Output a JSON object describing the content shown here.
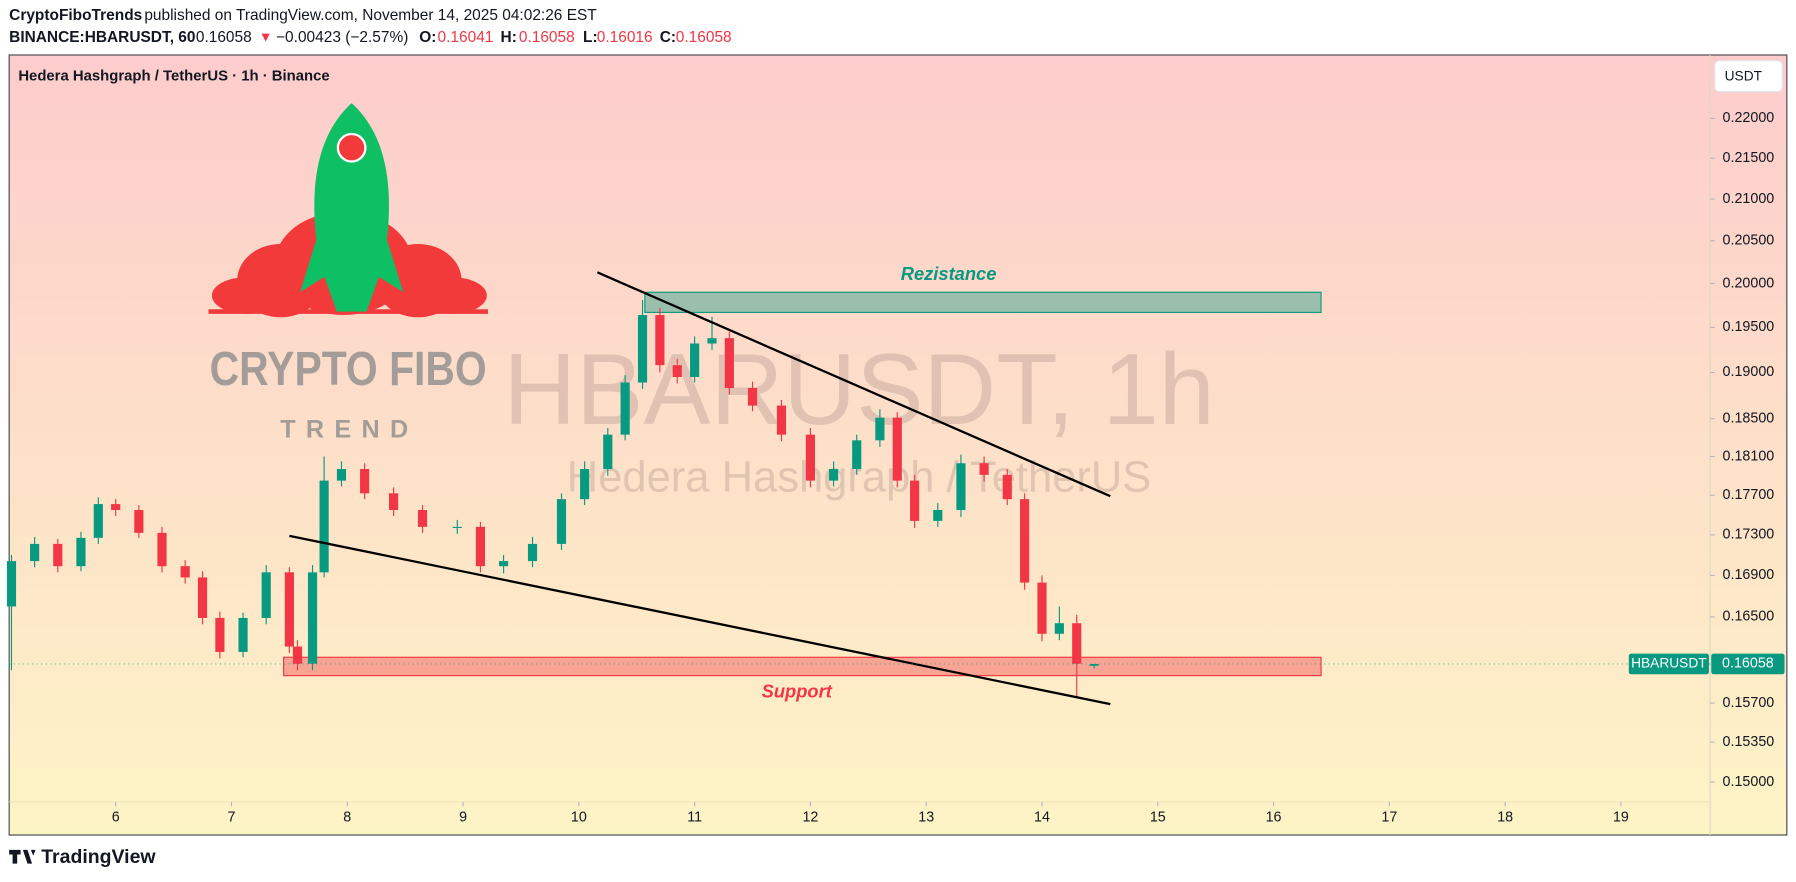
{
  "header": {
    "publisher": "CryptoFiboTrends",
    "published": "published on TradingView.com, November 14, 2025 04:02:26 EST",
    "symbol": "BINANCE:HBARUSDT, 60",
    "last": "0.16058",
    "arrow": "▼",
    "change": "−0.00423 (−2.57%)",
    "o_label": "O:",
    "o": "0.16041",
    "h_label": "H:",
    "h": "0.16058",
    "l_label": "L:",
    "l": "0.16016",
    "c_label": "C:",
    "c": "0.16058"
  },
  "chart_data": {
    "type": "candlestick",
    "title": "Hedera Hashgraph / TetherUS · 1h · Binance",
    "currency": "USDT",
    "watermark": "HBARUSDT, 1h",
    "watermark_sub": "Hedera Hashgraph / TetherUS",
    "symbol_label": "HBARUSDT",
    "last_price": 0.16058,
    "up_color": "#089981",
    "down_color": "#f23645",
    "log_scale": true,
    "x": [
      5.1,
      5.3,
      5.5,
      5.7,
      5.85,
      6.0,
      6.2,
      6.4,
      6.6,
      6.75,
      6.9,
      7.1,
      7.3,
      7.5,
      7.57,
      7.7,
      7.8,
      7.95,
      8.15,
      8.4,
      8.65,
      8.95,
      9.15,
      9.35,
      9.6,
      9.85,
      10.05,
      10.25,
      10.4,
      10.55,
      10.7,
      10.85,
      11.0,
      11.15,
      11.3,
      11.5,
      11.75,
      12.0,
      12.2,
      12.4,
      12.6,
      12.75,
      12.9,
      13.1,
      13.3,
      13.5,
      13.7,
      13.85,
      14.0,
      14.15,
      14.3,
      14.45
    ],
    "open": [
      0.166,
      0.1704,
      0.1721,
      0.1699,
      0.1727,
      0.1761,
      0.1755,
      0.1732,
      0.1699,
      0.1688,
      0.1649,
      0.1617,
      0.1649,
      0.1693,
      0.1622,
      0.1606,
      0.1693,
      0.1785,
      0.1797,
      0.1772,
      0.1755,
      0.1738,
      0.1738,
      0.1699,
      0.1704,
      0.1721,
      0.1766,
      0.1797,
      0.1833,
      0.1889,
      0.1964,
      0.1908,
      0.1895,
      0.1932,
      0.1938,
      0.1883,
      0.1864,
      0.1833,
      0.1785,
      0.1797,
      0.1827,
      0.1851,
      0.1785,
      0.1744,
      0.1755,
      0.1803,
      0.1791,
      0.1766,
      0.1683,
      0.1634,
      0.1644,
      0.16041
    ],
    "high": [
      0.171,
      0.1728,
      0.1726,
      0.1733,
      0.1768,
      0.1766,
      0.176,
      0.1738,
      0.1705,
      0.1694,
      0.1655,
      0.1654,
      0.17,
      0.1698,
      0.1628,
      0.17,
      0.181,
      0.1805,
      0.1803,
      0.1778,
      0.176,
      0.1745,
      0.1743,
      0.171,
      0.1728,
      0.1772,
      0.1805,
      0.184,
      0.1897,
      0.1981,
      0.1972,
      0.1915,
      0.194,
      0.1962,
      0.1945,
      0.189,
      0.187,
      0.184,
      0.1805,
      0.1833,
      0.186,
      0.1857,
      0.1791,
      0.1762,
      0.1812,
      0.181,
      0.1797,
      0.1772,
      0.169,
      0.166,
      0.1652,
      0.16058
    ],
    "low": [
      0.16,
      0.1698,
      0.1693,
      0.1694,
      0.1721,
      0.1749,
      0.1727,
      0.1693,
      0.1682,
      0.1643,
      0.1611,
      0.1612,
      0.1643,
      0.1616,
      0.16,
      0.16,
      0.1688,
      0.1779,
      0.1766,
      0.1749,
      0.1732,
      0.1731,
      0.1693,
      0.1692,
      0.1698,
      0.1715,
      0.176,
      0.179,
      0.1827,
      0.1882,
      0.19,
      0.1888,
      0.1889,
      0.1925,
      0.1876,
      0.1858,
      0.1826,
      0.1778,
      0.1779,
      0.1791,
      0.182,
      0.1778,
      0.1737,
      0.1738,
      0.1748,
      0.1784,
      0.176,
      0.1676,
      0.1627,
      0.1628,
      0.1575,
      0.16016
    ],
    "close": [
      0.1704,
      0.1721,
      0.1699,
      0.1727,
      0.1761,
      0.1755,
      0.1732,
      0.1699,
      0.1688,
      0.1649,
      0.1617,
      0.1649,
      0.1693,
      0.1622,
      0.1606,
      0.1693,
      0.1785,
      0.1797,
      0.1772,
      0.1755,
      0.1738,
      0.1738,
      0.1699,
      0.1704,
      0.1721,
      0.1766,
      0.1797,
      0.1833,
      0.1889,
      0.1964,
      0.1908,
      0.1895,
      0.1932,
      0.1938,
      0.1883,
      0.1864,
      0.1833,
      0.1785,
      0.1797,
      0.1827,
      0.1851,
      0.1785,
      0.1744,
      0.1755,
      0.1803,
      0.1791,
      0.1766,
      0.1683,
      0.1634,
      0.1644,
      0.1606,
      0.16058
    ],
    "xlim": [
      5.08,
      19.77
    ],
    "xticks": [
      6,
      7,
      8,
      9,
      10,
      11,
      12,
      13,
      14,
      15,
      16,
      17,
      18,
      19
    ],
    "ylim": [
      0.1483,
      0.2282
    ],
    "yticks": [
      {
        "value": 0.22,
        "label": "0.22000"
      },
      {
        "value": 0.215,
        "label": "0.21500"
      },
      {
        "value": 0.21,
        "label": "0.21000"
      },
      {
        "value": 0.205,
        "label": "0.20500"
      },
      {
        "value": 0.2,
        "label": "0.20000"
      },
      {
        "value": 0.195,
        "label": "0.19500"
      },
      {
        "value": 0.19,
        "label": "0.19000"
      },
      {
        "value": 0.185,
        "label": "0.18500"
      },
      {
        "value": 0.181,
        "label": "0.18100"
      },
      {
        "value": 0.177,
        "label": "0.17700"
      },
      {
        "value": 0.173,
        "label": "0.17300"
      },
      {
        "value": 0.169,
        "label": "0.16900"
      },
      {
        "value": 0.165,
        "label": "0.16500"
      },
      {
        "value": 0.157,
        "label": "0.15700"
      },
      {
        "value": 0.1535,
        "label": "0.15350"
      },
      {
        "value": 0.15,
        "label": "0.15000"
      }
    ],
    "zones": [
      {
        "label": "Rezistance",
        "color": "#089981",
        "x": [
          10.57,
          16.41
        ],
        "y": [
          0.1967,
          0.199
        ]
      },
      {
        "label": "Support",
        "color": "#f23645",
        "x": [
          7.45,
          16.41
        ],
        "y": [
          0.1595,
          0.1612
        ]
      }
    ],
    "trendlines": [
      {
        "x": [
          10.16,
          14.59
        ],
        "y": [
          0.2013,
          0.1769
        ]
      },
      {
        "x": [
          7.5,
          14.59
        ],
        "y": [
          0.1729,
          0.1569
        ]
      }
    ]
  },
  "logo": {
    "name": "CRYPTO FIBO",
    "tagline": "TREND"
  },
  "footer": {
    "brand": "TradingView"
  }
}
